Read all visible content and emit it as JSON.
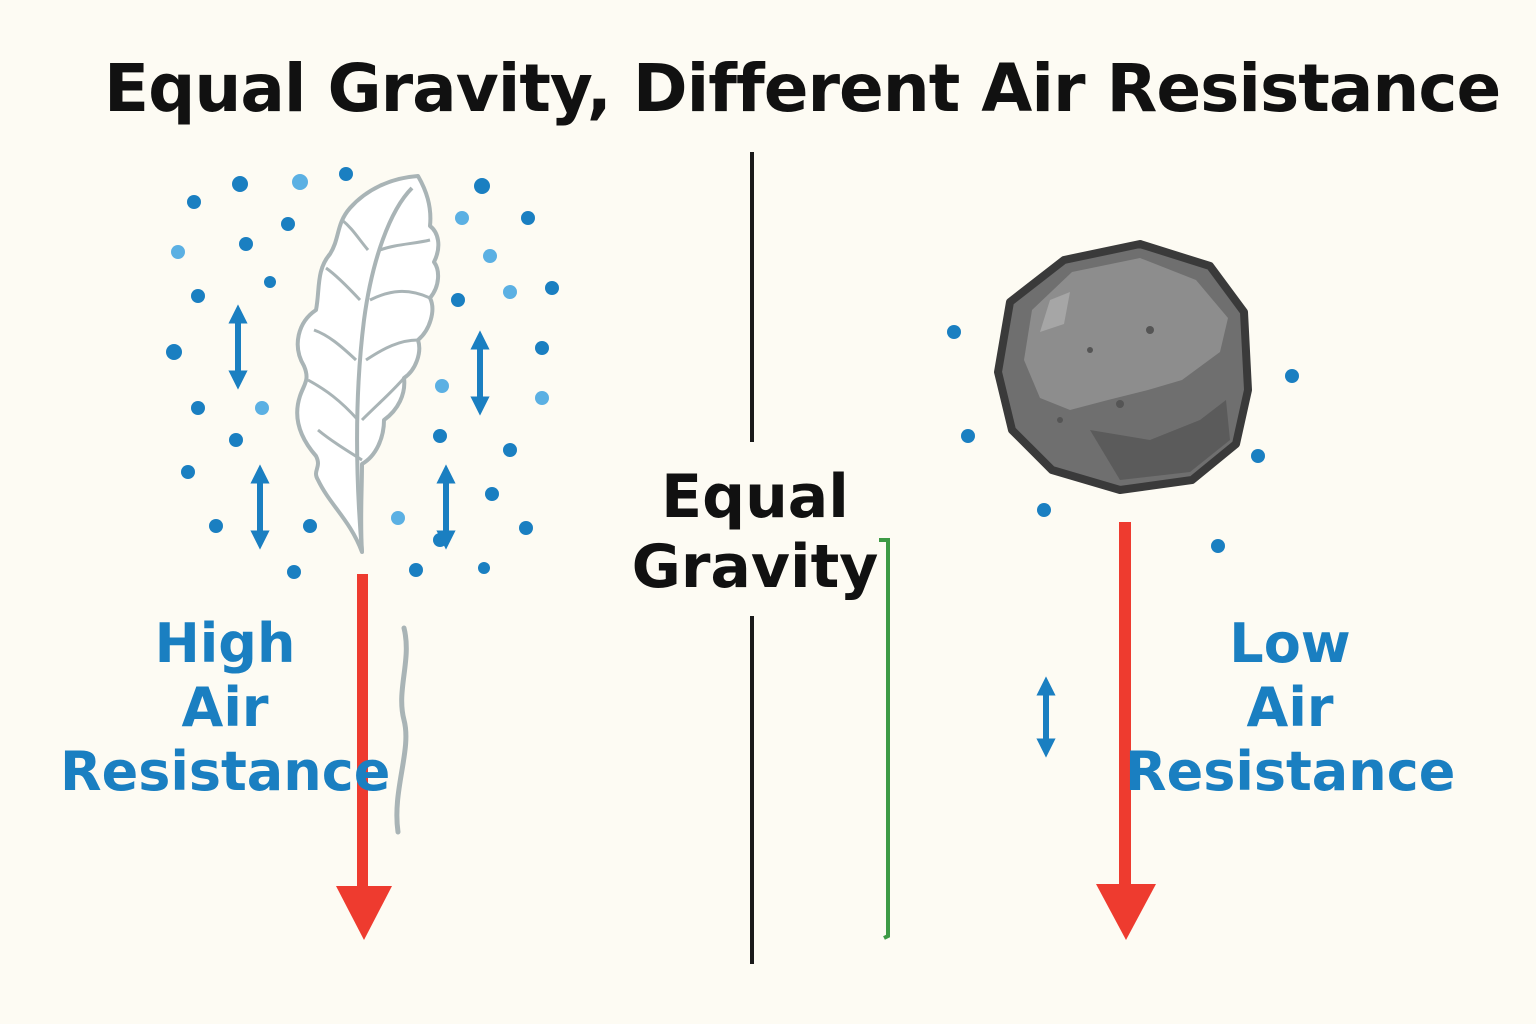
{
  "title": "Equal Gravity, Different Air Resistance",
  "feather": {
    "name": "Feather",
    "label_lines": [
      "High",
      "Air",
      "Resistance"
    ],
    "air_resistance": "High",
    "gravity_arrow_color": "#ee3b2f"
  },
  "rock": {
    "name": "Rock",
    "label_lines": [
      "Low",
      "Air",
      "Resistance"
    ],
    "air_resistance": "Low",
    "gravity_arrow_color": "#ee3b2f"
  },
  "center": {
    "label_lines": [
      "Equal",
      "Gravity"
    ]
  },
  "colors": {
    "background": "#fdfbf3",
    "air_particle": "#1a7fc1",
    "air_particle_light": "#5bb0e3",
    "gravity_arrow": "#ee3b2f",
    "divider": "#1a1a1a",
    "bracket": "#3d9a45",
    "text_blue": "#1a7fc1",
    "text_dark": "#111111",
    "feather": "#a9b4b6",
    "rock": "#6f6f6f"
  },
  "icons": [
    "feather-icon",
    "rock-icon",
    "air-particle-icon",
    "double-arrow-icon",
    "gravity-arrow-icon"
  ]
}
